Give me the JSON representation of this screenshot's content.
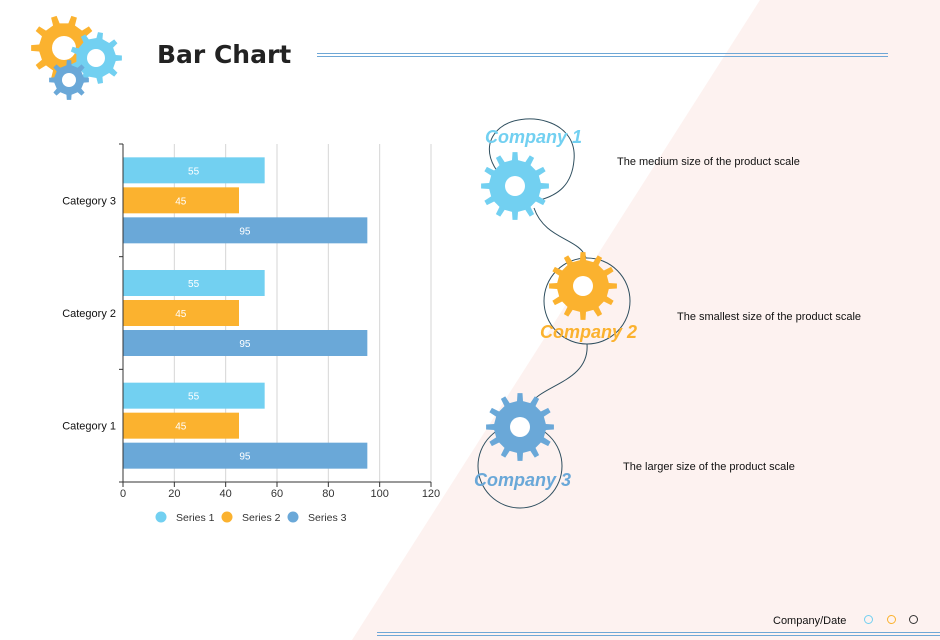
{
  "title": "Bar Chart",
  "colors": {
    "s1": "#72d0f1",
    "s2": "#fbb22f",
    "s3": "#6aa8d8",
    "bg": "#fdf2f0"
  },
  "chart_data": {
    "type": "bar",
    "orientation": "horizontal",
    "categories": [
      "Category 3",
      "Category 2",
      "Category 1"
    ],
    "series": [
      {
        "name": "Series 1",
        "values": [
          55,
          55,
          55
        ],
        "color": "#72d0f1"
      },
      {
        "name": "Series 2",
        "values": [
          45,
          45,
          45
        ],
        "color": "#fbb22f"
      },
      {
        "name": "Series 3",
        "values": [
          95,
          95,
          95
        ],
        "color": "#6aa8d8"
      }
    ],
    "xlim": [
      0,
      120
    ],
    "xticks": [
      "0",
      "20",
      "40",
      "60",
      "80",
      "100",
      "120"
    ],
    "grid": "vertical",
    "legend": "bottom"
  },
  "companies": [
    {
      "name": "Company 1",
      "desc": "The medium size of the product scale",
      "color": "#72d0f1"
    },
    {
      "name": "Company 2",
      "desc": "The smallest size of the product scale",
      "color": "#fbb22f"
    },
    {
      "name": "Company 3",
      "desc": "The larger size of the product scale",
      "color": "#6aa8d8"
    }
  ],
  "footer": {
    "text": "Company/Date"
  }
}
